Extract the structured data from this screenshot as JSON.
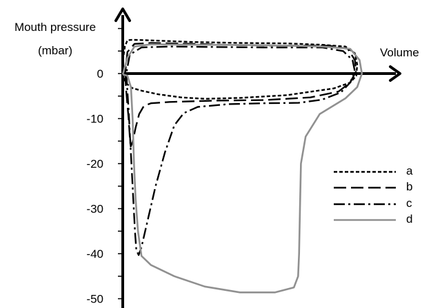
{
  "chart_data": {
    "type": "line",
    "title": "",
    "ylabel_line1": "Mouth pressure",
    "ylabel_line2": "(mbar)",
    "xlabel": "Volume",
    "y_ticks": [
      "0",
      "-10",
      "-20",
      "-30",
      "-40",
      "-50"
    ],
    "y_tick_values": [
      0,
      -10,
      -20,
      -30,
      -40,
      -50
    ],
    "ylim": [
      -50,
      10
    ],
    "legend_position": "right",
    "series": [
      {
        "name": "a",
        "style": "short-dash",
        "color": "#000000",
        "points": [
          [
            -0.3,
            0.5
          ],
          [
            0.2,
            3.5
          ],
          [
            0.9,
            6.0
          ],
          [
            2.0,
            7.4
          ],
          [
            4,
            7.5
          ],
          [
            10,
            7.4
          ],
          [
            30,
            7.0
          ],
          [
            50,
            6.8
          ],
          [
            70,
            6.7
          ],
          [
            85,
            6.4
          ],
          [
            95,
            6.0
          ],
          [
            99,
            4.5
          ],
          [
            100,
            2.0
          ],
          [
            99.6,
            -0.5
          ],
          [
            97,
            -2.0
          ],
          [
            90,
            -3.3
          ],
          [
            70,
            -4.8
          ],
          [
            50,
            -5.4
          ],
          [
            35,
            -5.6
          ],
          [
            25,
            -5.3
          ],
          [
            15,
            -4.6
          ],
          [
            8,
            -3.8
          ],
          [
            4,
            -3.2
          ],
          [
            1.5,
            -2.2
          ],
          [
            0,
            -0.5
          ]
        ]
      },
      {
        "name": "b",
        "style": "long-dash",
        "color": "#000000",
        "points": [
          [
            1.0,
            0
          ],
          [
            1.5,
            -4
          ],
          [
            2.5,
            -10
          ],
          [
            3.0,
            -14
          ],
          [
            3.4,
            -16.2
          ],
          [
            4.2,
            -15.2
          ],
          [
            5.5,
            -12.0
          ],
          [
            7,
            -9.0
          ],
          [
            9,
            -7.2
          ],
          [
            12,
            -6.6
          ],
          [
            20,
            -6.3
          ],
          [
            40,
            -6.0
          ],
          [
            60,
            -5.9
          ],
          [
            80,
            -5.3
          ],
          [
            92,
            -4.0
          ],
          [
            97,
            -2.0
          ],
          [
            99.5,
            0.5
          ],
          [
            99,
            3.0
          ],
          [
            96,
            5.5
          ],
          [
            88,
            6.2
          ],
          [
            70,
            6.2
          ],
          [
            50,
            6.3
          ],
          [
            30,
            6.6
          ],
          [
            12,
            6.8
          ],
          [
            5,
            6.6
          ],
          [
            2,
            4.8
          ],
          [
            1.0,
            0
          ]
        ]
      },
      {
        "name": "c",
        "style": "dash-dot",
        "color": "#000000",
        "points": [
          [
            1.5,
            0
          ],
          [
            2.5,
            -8
          ],
          [
            3.5,
            -18
          ],
          [
            4.5,
            -28
          ],
          [
            5.2,
            -35
          ],
          [
            5.8,
            -39.2
          ],
          [
            6.8,
            -40.3
          ],
          [
            8.0,
            -38.5
          ],
          [
            10,
            -34
          ],
          [
            14,
            -25
          ],
          [
            18,
            -17.5
          ],
          [
            22,
            -11.5
          ],
          [
            26,
            -8.8
          ],
          [
            32,
            -7.4
          ],
          [
            45,
            -6.8
          ],
          [
            60,
            -6.6
          ],
          [
            75,
            -6.5
          ],
          [
            85,
            -5.8
          ],
          [
            93,
            -4.2
          ],
          [
            97,
            -2.0
          ],
          [
            99,
            0.5
          ],
          [
            98,
            3.0
          ],
          [
            94,
            5.0
          ],
          [
            85,
            5.8
          ],
          [
            60,
            5.8
          ],
          [
            40,
            5.9
          ],
          [
            20,
            6.0
          ],
          [
            8,
            5.8
          ],
          [
            3,
            4.2
          ],
          [
            1.5,
            0
          ]
        ]
      },
      {
        "name": "d",
        "style": "solid",
        "color": "#909090",
        "points": [
          [
            0,
            -0.2
          ],
          [
            2,
            3.5
          ],
          [
            5,
            6.0
          ],
          [
            12,
            6.5
          ],
          [
            30,
            6.4
          ],
          [
            60,
            6.3
          ],
          [
            85,
            6.0
          ],
          [
            97,
            5.5
          ],
          [
            101,
            3.0
          ],
          [
            102,
            0
          ],
          [
            100,
            -3.0
          ],
          [
            95,
            -5.5
          ],
          [
            84,
            -9.0
          ],
          [
            78,
            -14
          ],
          [
            76,
            -20
          ],
          [
            75.6,
            -30
          ],
          [
            75.2,
            -40
          ],
          [
            74.8,
            -45
          ],
          [
            73,
            -47.5
          ],
          [
            65,
            -48.6
          ],
          [
            50,
            -48.6
          ],
          [
            35,
            -47.3
          ],
          [
            22,
            -45
          ],
          [
            12,
            -42.5
          ],
          [
            8,
            -40.5
          ],
          [
            6.5,
            -35
          ],
          [
            5.5,
            -28
          ],
          [
            4.8,
            -20
          ],
          [
            4.2,
            -10
          ],
          [
            3.5,
            -3.0
          ],
          [
            2,
            -0.5
          ],
          [
            0,
            -0.2
          ]
        ]
      }
    ]
  }
}
